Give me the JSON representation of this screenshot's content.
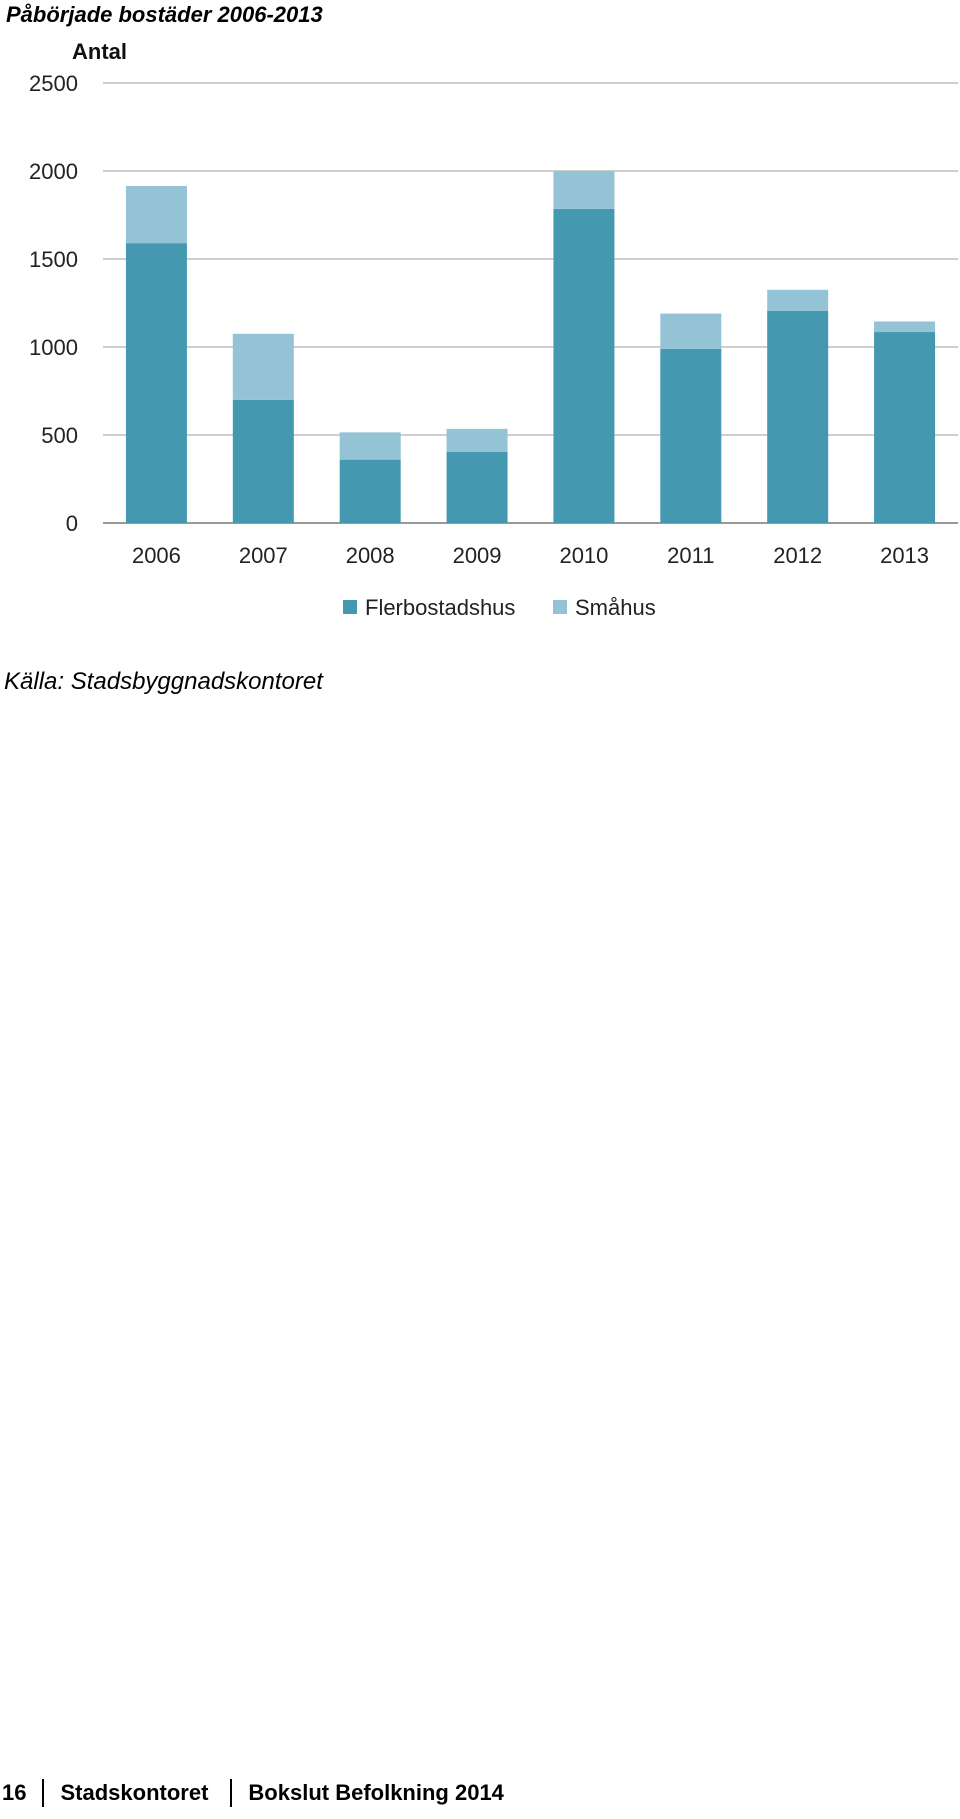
{
  "title": "Påbörjade bostäder 2006-2013",
  "source": "Källa: Stadsbyggnadskontoret",
  "footer": {
    "page_number": "16",
    "organization": "Stadskontoret",
    "document": "Bokslut Befolkning 2014"
  },
  "chart_data": {
    "type": "bar",
    "stacked": true,
    "title": "Påbörjade bostäder 2006-2013",
    "xlabel": "",
    "ylabel": "Antal",
    "ylim": [
      0,
      2500
    ],
    "yticks": [
      0,
      500,
      1000,
      1500,
      2000,
      2500
    ],
    "grid": true,
    "legend": "bottom",
    "categories": [
      "2006",
      "2007",
      "2008",
      "2009",
      "2010",
      "2011",
      "2012",
      "2013"
    ],
    "series": [
      {
        "name": "Flerbostadshus",
        "color": "#4499b1",
        "values": [
          1590,
          700,
          360,
          405,
          1785,
          990,
          1205,
          1085
        ]
      },
      {
        "name": "Småhus",
        "color": "#93c3d5",
        "values": [
          325,
          375,
          155,
          130,
          215,
          200,
          120,
          60
        ]
      }
    ]
  }
}
